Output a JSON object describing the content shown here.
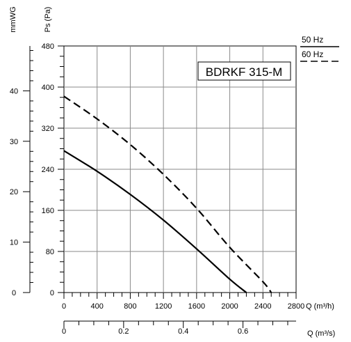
{
  "chart_data": {
    "type": "line",
    "title": "BDRKF 315-M",
    "xlabel": "Q (m³/h)",
    "xlabel_secondary": "Q (m³/s)",
    "ylabel": "Ps (Pa)",
    "ylabel_secondary": "mmWG",
    "xlim": [
      0,
      2800
    ],
    "ylim": [
      0,
      480
    ],
    "x_ticks": [
      0,
      400,
      800,
      1200,
      1600,
      2000,
      2400,
      2800
    ],
    "y_ticks": [
      0,
      80,
      160,
      240,
      320,
      400,
      480
    ],
    "x2_lim": [
      0,
      0.778
    ],
    "x2_ticks": [
      0,
      0.2,
      0.4,
      0.6
    ],
    "x2_tick_labels": [
      "0",
      "0.2",
      "0.4",
      "0.6"
    ],
    "y2_lim": [
      0,
      48.9
    ],
    "y2_ticks": [
      0,
      10,
      20,
      30,
      40
    ],
    "grid": true,
    "legend": {
      "position": "top-right",
      "entries": [
        {
          "label": "50 Hz",
          "style": "solid"
        },
        {
          "label": "60 Hz",
          "style": "dashed"
        }
      ]
    },
    "series": [
      {
        "name": "50 Hz",
        "style": "solid",
        "x": [
          0,
          400,
          800,
          1200,
          1600,
          2000,
          2200
        ],
        "y": [
          276,
          236,
          191,
          141,
          85,
          26,
          0
        ]
      },
      {
        "name": "60 Hz",
        "style": "dashed",
        "x": [
          0,
          400,
          800,
          1200,
          1600,
          2000,
          2400,
          2500
        ],
        "y": [
          382,
          338,
          288,
          230,
          164,
          88,
          21,
          0
        ]
      }
    ]
  }
}
